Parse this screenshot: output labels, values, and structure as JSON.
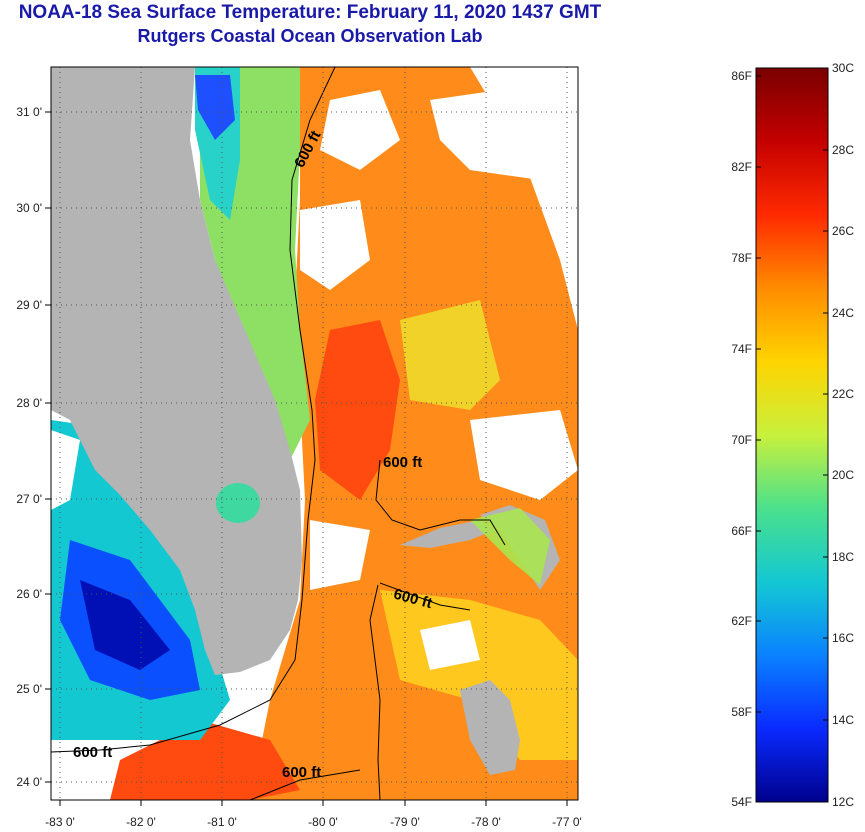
{
  "title_line1": "NOAA-18 Sea Surface Temperature:  February 11, 2020 1437 GMT",
  "title_line2": "Rutgers Coastal Ocean Observation Lab",
  "longitude_labels": [
    "-83 0'",
    "-82 0'",
    "-81 0'",
    "-80 0'",
    "-79 0'",
    "-78 0'",
    "-77 0'"
  ],
  "latitude_labels": [
    "31 0'",
    "30 0'",
    "29 0'",
    "28 0'",
    "27 0'",
    "26 0'",
    "25 0'",
    "24 0'"
  ],
  "isobath_labels": [
    "600 ft",
    "600 ft",
    "600 ft",
    "600 ft",
    "600 ft"
  ],
  "colorbar": {
    "fahrenheit_labels": [
      "86F",
      "82F",
      "78F",
      "74F",
      "70F",
      "66F",
      "62F",
      "58F",
      "54F"
    ],
    "celsius_labels": [
      "30C",
      "28C",
      "26C",
      "24C",
      "22C",
      "20C",
      "18C",
      "16C",
      "14C",
      "12C"
    ],
    "colors": [
      "#7a0000",
      "#c40000",
      "#ff2a00",
      "#ff8c00",
      "#ffd400",
      "#c8f03c",
      "#4be08c",
      "#14c8d2",
      "#0a82ff",
      "#0a2aff",
      "#00008c"
    ]
  },
  "land_color": "#b4b4b4",
  "cloud_color": "#ffffff"
}
